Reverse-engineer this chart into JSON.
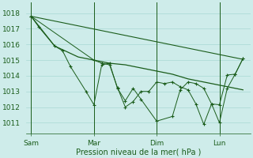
{
  "background_color": "#ceecea",
  "grid_color": "#a8d8d4",
  "line_color": "#1a5c1a",
  "text_color": "#1a5c1a",
  "xlabel_text": "Pression niveau de la mer( hPa )",
  "xtick_labels": [
    "Sam",
    "Mar",
    "Dim",
    "Lun"
  ],
  "xtick_positions": [
    0,
    4,
    8,
    12
  ],
  "ytick_labels": [
    "1011",
    "1012",
    "1013",
    "1014",
    "1015",
    "1016",
    "1017",
    "1018"
  ],
  "ylim": [
    1010.3,
    1018.7
  ],
  "xlim": [
    -0.3,
    14.0
  ],
  "vline_positions": [
    0,
    4,
    8,
    12
  ],
  "series1_x": [
    0,
    0.5,
    1.5,
    2,
    2.5,
    3.5,
    4,
    4.5,
    5,
    5.5,
    6,
    6.5,
    7,
    8,
    9,
    9.5,
    10,
    10.5,
    11,
    11.5,
    12,
    12.5,
    13,
    13.5
  ],
  "series1_y": [
    1017.8,
    1017.1,
    1015.9,
    1015.6,
    1014.6,
    1013.0,
    1012.15,
    1014.7,
    1014.8,
    1013.2,
    1012.4,
    1013.2,
    1012.5,
    1011.1,
    1011.4,
    1013.1,
    1013.6,
    1013.5,
    1013.2,
    1012.2,
    1011.0,
    1013.2,
    1014.1,
    1015.1
  ],
  "series2_x": [
    0,
    1.5,
    3,
    4,
    5,
    6,
    7,
    8,
    9,
    10,
    11,
    12,
    13,
    13.5
  ],
  "series2_y": [
    1017.8,
    1015.9,
    1015.2,
    1015.0,
    1014.8,
    1014.7,
    1014.5,
    1014.3,
    1014.1,
    1013.8,
    1013.6,
    1013.4,
    1013.2,
    1013.1
  ],
  "series3_x": [
    0,
    4,
    4.5,
    5,
    5.5,
    6,
    6.5,
    7,
    7.5,
    8,
    8.5,
    9,
    9.5,
    10,
    10.5,
    11,
    11.5,
    12,
    12.5,
    13,
    13.5
  ],
  "series3_y": [
    1017.8,
    1015.0,
    1014.8,
    1014.7,
    1013.25,
    1012.0,
    1012.35,
    1013.0,
    1013.0,
    1013.6,
    1013.5,
    1013.6,
    1013.3,
    1013.1,
    1012.2,
    1010.9,
    1012.2,
    1012.15,
    1014.05,
    1014.1,
    1015.1
  ],
  "series4_x": [
    0,
    13.5
  ],
  "series4_y": [
    1017.8,
    1015.05
  ]
}
